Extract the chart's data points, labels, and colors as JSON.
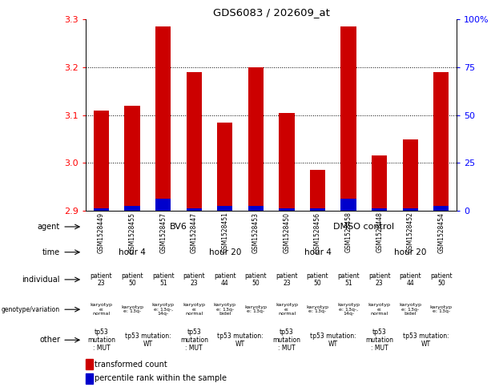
{
  "title": "GDS6083 / 202609_at",
  "samples": [
    "GSM1528449",
    "GSM1528455",
    "GSM1528457",
    "GSM1528447",
    "GSM1528451",
    "GSM1528453",
    "GSM1528450",
    "GSM1528456",
    "GSM1528458",
    "GSM1528448",
    "GSM1528452",
    "GSM1528454"
  ],
  "bar_values": [
    3.11,
    3.12,
    3.285,
    3.19,
    3.085,
    3.2,
    3.105,
    2.985,
    3.285,
    3.015,
    3.05,
    3.19
  ],
  "blue_values": [
    2.905,
    2.91,
    2.925,
    2.905,
    2.91,
    2.91,
    2.905,
    2.905,
    2.925,
    2.905,
    2.905,
    2.91
  ],
  "ylim_min": 2.9,
  "ylim_max": 3.3,
  "right_yticks": [
    0,
    25,
    50,
    75,
    100
  ],
  "right_yticklabels": [
    "0",
    "25",
    "50",
    "75",
    "100%"
  ],
  "yticks": [
    2.9,
    3.0,
    3.1,
    3.2,
    3.3
  ],
  "dotted_lines": [
    3.0,
    3.1,
    3.2
  ],
  "bar_color": "#cc0000",
  "blue_color": "#0000cc",
  "bar_width": 0.5,
  "agent_groups": [
    {
      "text": "BV6",
      "start": 0,
      "end": 5,
      "color": "#aaeebb"
    },
    {
      "text": "DMSO control",
      "start": 6,
      "end": 11,
      "color": "#55cc66"
    }
  ],
  "time_groups": [
    {
      "text": "hour 4",
      "start": 0,
      "end": 2,
      "color": "#aaddee"
    },
    {
      "text": "hour 20",
      "start": 3,
      "end": 5,
      "color": "#66bbdd"
    },
    {
      "text": "hour 4",
      "start": 6,
      "end": 8,
      "color": "#aaddee"
    },
    {
      "text": "hour 20",
      "start": 9,
      "end": 11,
      "color": "#66bbdd"
    }
  ],
  "individual_cells": [
    {
      "text": "patient\n23",
      "color": "#ffffff"
    },
    {
      "text": "patient\n50",
      "color": "#cc88cc"
    },
    {
      "text": "patient\n51",
      "color": "#cc88cc"
    },
    {
      "text": "patient\n23",
      "color": "#ffffff"
    },
    {
      "text": "patient\n44",
      "color": "#cc88cc"
    },
    {
      "text": "patient\n50",
      "color": "#cc88cc"
    },
    {
      "text": "patient\n23",
      "color": "#ffffff"
    },
    {
      "text": "patient\n50",
      "color": "#cc88cc"
    },
    {
      "text": "patient\n51",
      "color": "#cc88cc"
    },
    {
      "text": "patient\n23",
      "color": "#ffffff"
    },
    {
      "text": "patient\n44",
      "color": "#cc88cc"
    },
    {
      "text": "patient\n50",
      "color": "#cc88cc"
    }
  ],
  "genotype_cells": [
    {
      "text": "karyotyp\ne:\nnormal",
      "color": "#ffb6c1"
    },
    {
      "text": "karyotyp\ne: 13q-",
      "color": "#ff80cc"
    },
    {
      "text": "karyotyp\ne: 13q-,\n14q-",
      "color": "#ff80cc"
    },
    {
      "text": "karyotyp\ne:\nnormal",
      "color": "#ffb6c1"
    },
    {
      "text": "karyotyp\ne: 13q-\nbidel",
      "color": "#ff80cc"
    },
    {
      "text": "karyotyp\ne: 13q-",
      "color": "#ff80cc"
    },
    {
      "text": "karyotyp\ne:\nnormal",
      "color": "#ffb6c1"
    },
    {
      "text": "karyotyp\ne: 13q-",
      "color": "#ff80cc"
    },
    {
      "text": "karyotyp\ne: 13q-,\n14q-",
      "color": "#ff80cc"
    },
    {
      "text": "karyotyp\ne:\nnormal",
      "color": "#ffb6c1"
    },
    {
      "text": "karyotyp\ne: 13q-\nbidel",
      "color": "#ff80cc"
    },
    {
      "text": "karyotyp\ne: 13q-",
      "color": "#ff80cc"
    }
  ],
  "other_groups": [
    {
      "text": "tp53\nmutation\n: MUT",
      "start": 0,
      "end": 0,
      "color": "#ffccff"
    },
    {
      "text": "tp53 mutation:\nWT",
      "start": 1,
      "end": 2,
      "color": "#ffff99"
    },
    {
      "text": "tp53\nmutation\n: MUT",
      "start": 3,
      "end": 3,
      "color": "#ffccff"
    },
    {
      "text": "tp53 mutation:\nWT",
      "start": 4,
      "end": 5,
      "color": "#ffff99"
    },
    {
      "text": "tp53\nmutation\n: MUT",
      "start": 6,
      "end": 6,
      "color": "#ffccff"
    },
    {
      "text": "tp53 mutation:\nWT",
      "start": 7,
      "end": 8,
      "color": "#ffff99"
    },
    {
      "text": "tp53\nmutation\n: MUT",
      "start": 9,
      "end": 9,
      "color": "#ffccff"
    },
    {
      "text": "tp53 mutation:\nWT",
      "start": 10,
      "end": 11,
      "color": "#ffff99"
    }
  ],
  "legend_items": [
    {
      "label": "transformed count",
      "color": "#cc0000"
    },
    {
      "label": "percentile rank within the sample",
      "color": "#0000cc"
    }
  ],
  "row_labels": [
    "agent",
    "time",
    "individual",
    "genotype/variation",
    "other"
  ],
  "fig_bg": "#ffffff"
}
